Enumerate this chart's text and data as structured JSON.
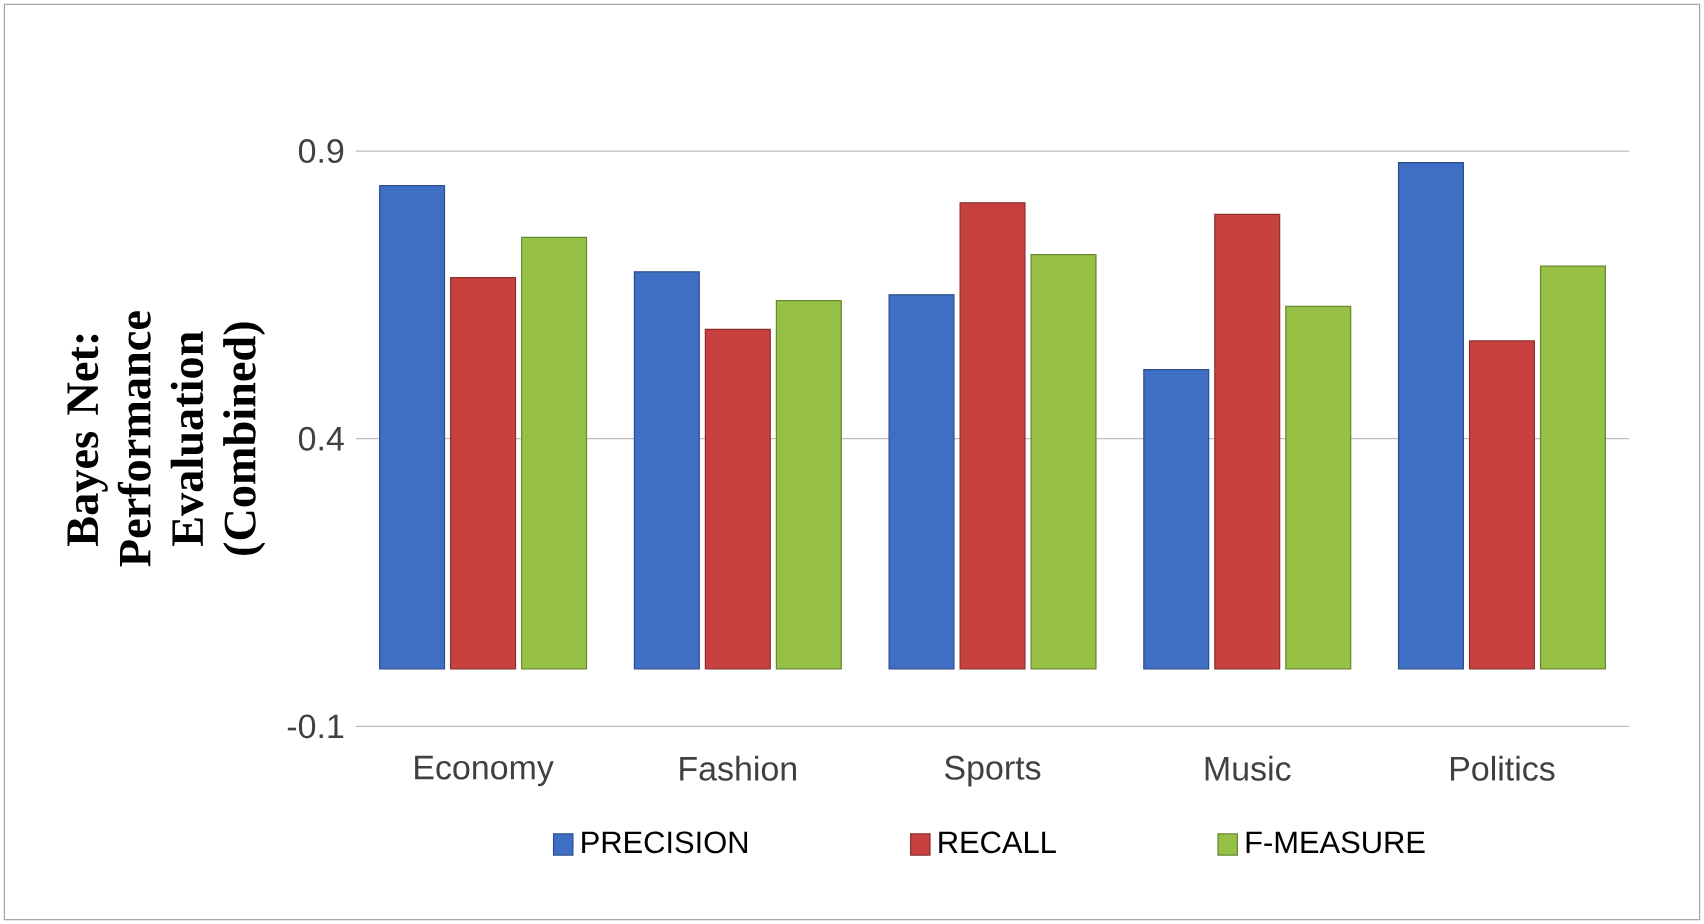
{
  "chart_data": {
    "type": "bar",
    "ylabel": "Bayes Net: Performance Evaluation (Combined)",
    "categories": [
      "Economy",
      "Fashion",
      "Sports",
      "Music",
      "Politics"
    ],
    "series": [
      {
        "name": "PRECISION",
        "color": "#3f6fc4",
        "values": [
          0.84,
          0.69,
          0.65,
          0.52,
          0.88
        ]
      },
      {
        "name": "RECALL",
        "color": "#c9413f",
        "values": [
          0.68,
          0.59,
          0.81,
          0.79,
          0.57
        ]
      },
      {
        "name": "F-MEASURE",
        "color": "#96c146",
        "values": [
          0.75,
          0.64,
          0.72,
          0.63,
          0.7
        ]
      }
    ],
    "ylim": [
      -0.1,
      0.9
    ],
    "yticks": [
      -0.1,
      0.4,
      0.9
    ],
    "grid": "y",
    "legend": "bottom"
  }
}
